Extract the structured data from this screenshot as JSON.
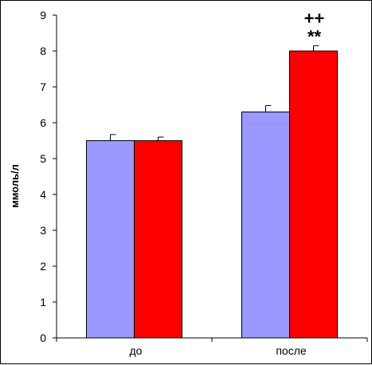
{
  "chart_data": {
    "type": "bar",
    "title": "",
    "xlabel": "",
    "ylabel": "ммоль/л",
    "ylim": [
      0,
      9
    ],
    "yticks": [
      0,
      1,
      2,
      3,
      4,
      5,
      6,
      7,
      8,
      9
    ],
    "grid": false,
    "legend": "none",
    "categories": [
      "до",
      "после"
    ],
    "series": [
      {
        "color": "#9999ff",
        "values": [
          5.5,
          6.3
        ],
        "errors": [
          0.17,
          0.18
        ]
      },
      {
        "color": "#ff0000",
        "values": [
          5.5,
          8.0
        ],
        "errors": [
          0.1,
          0.15
        ]
      }
    ],
    "annotations": [
      {
        "category_index": 1,
        "series_index": 1,
        "lines": [
          "++",
          "**"
        ]
      }
    ]
  }
}
